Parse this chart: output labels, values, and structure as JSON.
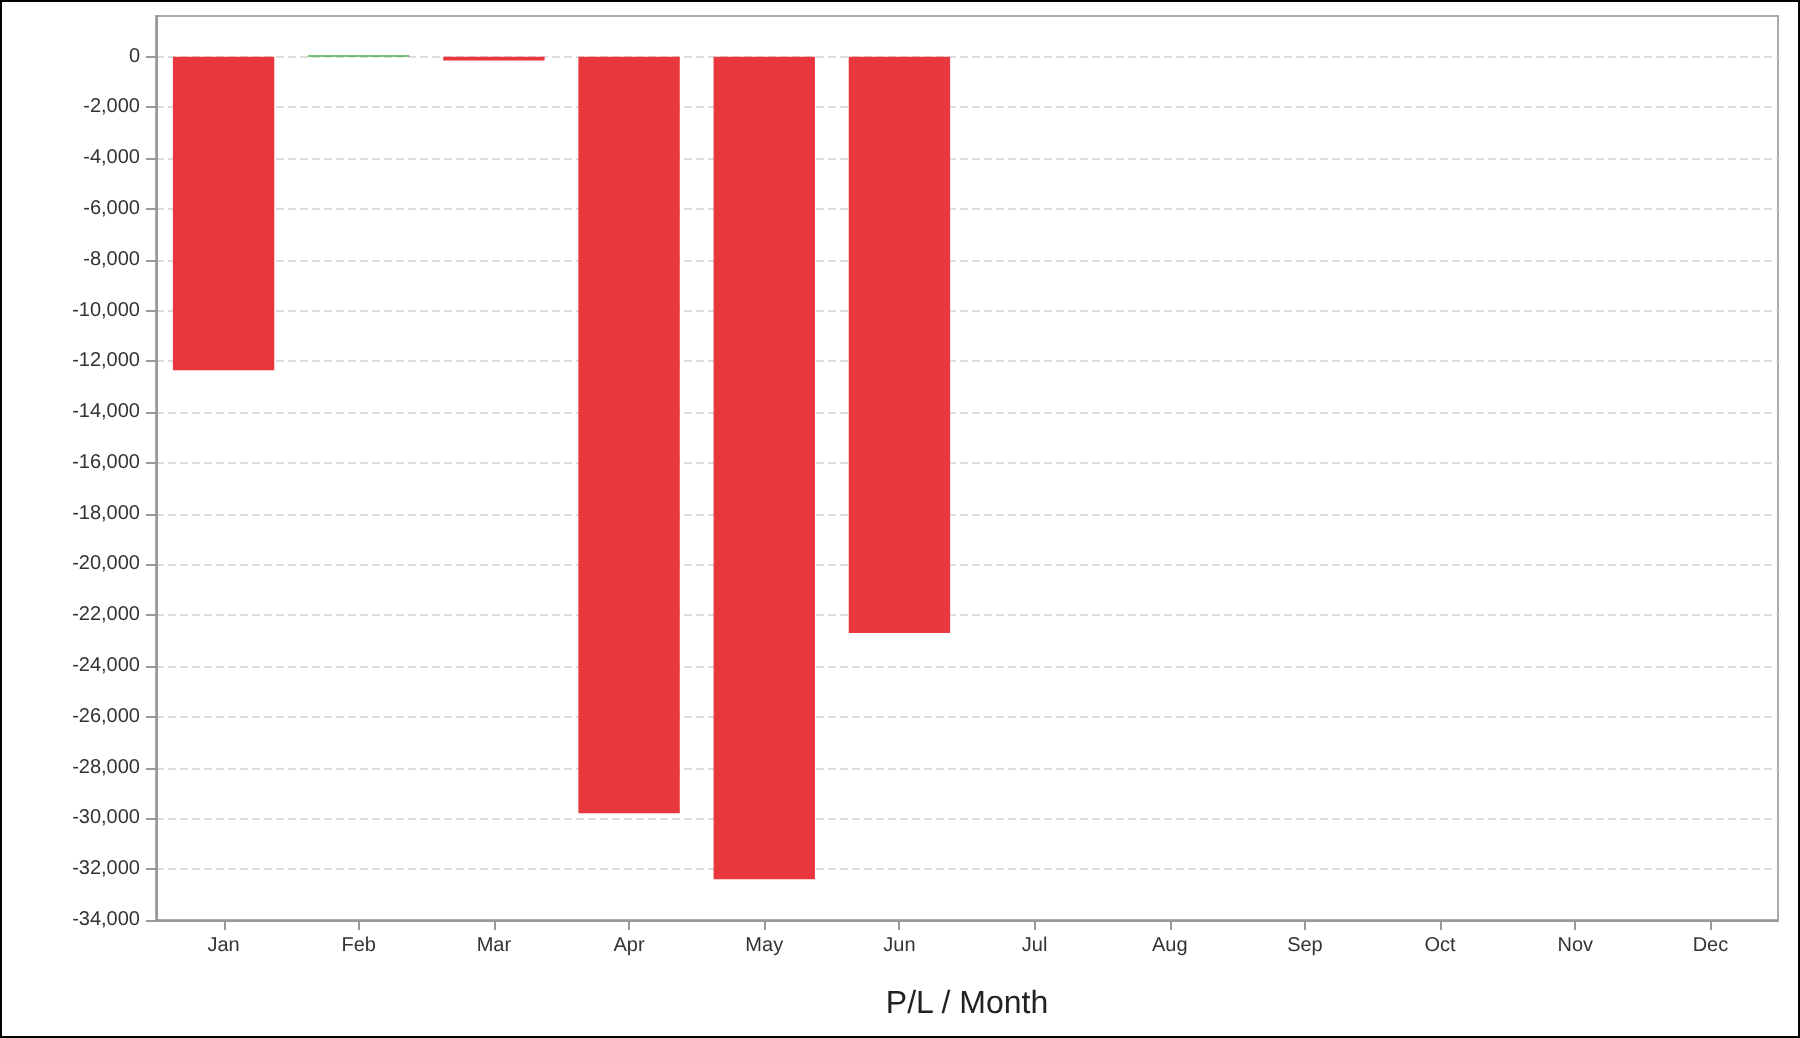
{
  "chart_data": {
    "type": "bar",
    "xlabel": "P/L / Month",
    "categories": [
      "Jan",
      "Feb",
      "Mar",
      "Apr",
      "May",
      "Jun",
      "Jul",
      "Aug",
      "Sep",
      "Oct",
      "Nov",
      "Dec"
    ],
    "values": [
      -12350,
      50,
      -150,
      -29800,
      -32400,
      -22700,
      null,
      null,
      null,
      null,
      null,
      null
    ],
    "colors": [
      "#e8383d",
      "#4caf50",
      "#e8383d",
      "#e8383d",
      "#e8383d",
      "#e8383d",
      "#e8383d",
      "#e8383d",
      "#e8383d",
      "#e8383d",
      "#e8383d",
      "#e8383d"
    ],
    "ylim": [
      -34000,
      1600
    ],
    "yticks": [
      0,
      {
        "value": -2000,
        "label": "-2,000"
      },
      {
        "value": -4000,
        "label": "-4,000"
      },
      {
        "value": -6000,
        "label": "-6,000"
      },
      {
        "value": -8000,
        "label": "-8,000"
      },
      {
        "value": -10000,
        "label": "-10,000"
      },
      {
        "value": -12000,
        "label": "-12,000"
      },
      {
        "value": -14000,
        "label": "-14,000"
      },
      {
        "value": -16000,
        "label": "-16,000"
      },
      {
        "value": -18000,
        "label": "-18,000"
      },
      {
        "value": -20000,
        "label": "-20,000"
      },
      {
        "value": -22000,
        "label": "-22,000"
      },
      {
        "value": -24000,
        "label": "-24,000"
      },
      {
        "value": -26000,
        "label": "-26,000"
      },
      {
        "value": -28000,
        "label": "-28,000"
      },
      {
        "value": -30000,
        "label": "-30,000"
      },
      {
        "value": -32000,
        "label": "-32,000"
      },
      {
        "value": -34000,
        "label": "-34,000"
      }
    ],
    "grid": "y"
  }
}
